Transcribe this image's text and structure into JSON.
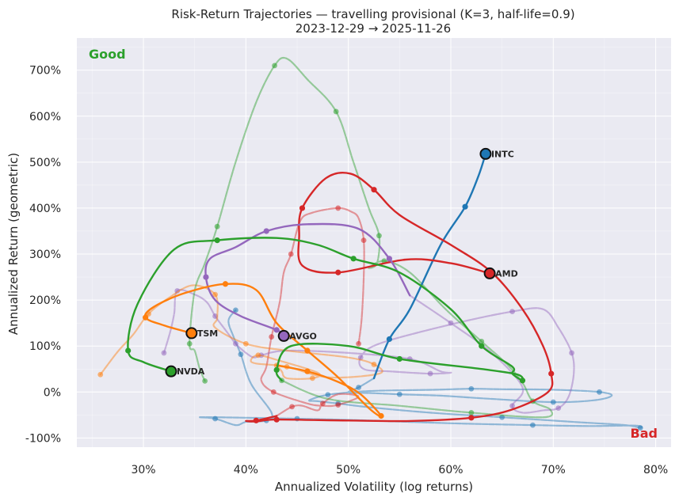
{
  "chart_data": {
    "type": "line",
    "title": "Risk-Return Trajectories — travelling provisional (K=3, half-life=0.9)",
    "subtitle": "2023-12-29 → 2025-11-26",
    "xlabel": "Annualized Volatility (log returns)",
    "ylabel": "Annualized Return (geometric)",
    "xlim": [
      0.235,
      0.815
    ],
    "ylim": [
      -1.2,
      7.7
    ],
    "xticks": [
      0.3,
      0.4,
      0.5,
      0.6,
      0.7,
      0.8
    ],
    "xtick_labels": [
      "30%",
      "40%",
      "50%",
      "60%",
      "70%",
      "80%"
    ],
    "yticks": [
      -1,
      0,
      1,
      2,
      3,
      4,
      5,
      6,
      7
    ],
    "ytick_labels": [
      "-100%",
      "0%",
      "100%",
      "200%",
      "300%",
      "400%",
      "500%",
      "600%",
      "700%"
    ],
    "grid": true,
    "corner_labels": {
      "good": "Good",
      "bad": "Bad"
    },
    "colors": {
      "good": "#2ca02c",
      "bad": "#d62728",
      "plot_bg": "#eaeaf2",
      "grid": "#ffffff"
    },
    "series": [
      {
        "name": "INTC",
        "color": "#1f77b4",
        "history": [
          [
            0.39,
            1.78
          ],
          [
            0.383,
            1.55
          ],
          [
            0.388,
            1.2
          ],
          [
            0.395,
            0.82
          ],
          [
            0.405,
            0.18
          ],
          [
            0.425,
            -0.45
          ],
          [
            0.42,
            -0.62
          ],
          [
            0.4,
            -0.65
          ],
          [
            0.39,
            -0.72
          ],
          [
            0.37,
            -0.58
          ],
          [
            0.355,
            -0.55
          ],
          [
            0.37,
            -0.55
          ],
          [
            0.45,
            -0.58
          ],
          [
            0.52,
            -0.62
          ],
          [
            0.6,
            -0.68
          ],
          [
            0.68,
            -0.72
          ],
          [
            0.735,
            -0.74
          ],
          [
            0.78,
            -0.73
          ],
          [
            0.785,
            -0.78
          ],
          [
            0.77,
            -0.72
          ],
          [
            0.72,
            -0.65
          ],
          [
            0.65,
            -0.55
          ],
          [
            0.58,
            -0.45
          ],
          [
            0.52,
            -0.33
          ],
          [
            0.49,
            -0.25
          ],
          [
            0.47,
            -0.2
          ],
          [
            0.462,
            -0.18
          ],
          [
            0.48,
            -0.06
          ],
          [
            0.52,
            0.02
          ],
          [
            0.585,
            0.05
          ],
          [
            0.62,
            0.07
          ],
          [
            0.65,
            0.06
          ],
          [
            0.7,
            0.05
          ],
          [
            0.745,
            0.0
          ],
          [
            0.757,
            -0.08
          ],
          [
            0.74,
            -0.18
          ],
          [
            0.7,
            -0.22
          ],
          [
            0.64,
            -0.15
          ],
          [
            0.59,
            -0.08
          ],
          [
            0.55,
            -0.05
          ],
          [
            0.52,
            -0.02
          ],
          [
            0.5,
            -0.01
          ],
          [
            0.51,
            0.1
          ],
          [
            0.525,
            0.3
          ]
        ],
        "recent": [
          [
            0.525,
            0.3
          ],
          [
            0.54,
            1.15
          ],
          [
            0.56,
            1.8
          ],
          [
            0.59,
            3.2
          ],
          [
            0.614,
            4.03
          ],
          [
            0.627,
            4.7
          ],
          [
            0.634,
            5.18
          ]
        ],
        "end": [
          0.634,
          5.18
        ]
      },
      {
        "name": "AMD",
        "color": "#d62728",
        "history": [
          [
            0.51,
            1.05
          ],
          [
            0.513,
            1.6
          ],
          [
            0.515,
            2.5
          ],
          [
            0.515,
            3.3
          ],
          [
            0.51,
            3.78
          ],
          [
            0.503,
            3.92
          ],
          [
            0.49,
            4.0
          ],
          [
            0.465,
            3.9
          ],
          [
            0.453,
            3.72
          ],
          [
            0.444,
            3.0
          ],
          [
            0.437,
            2.6
          ],
          [
            0.433,
            1.95
          ],
          [
            0.425,
            1.2
          ],
          [
            0.42,
            0.55
          ],
          [
            0.415,
            0.25
          ],
          [
            0.427,
            0.0
          ],
          [
            0.46,
            -0.25
          ],
          [
            0.475,
            -0.3
          ],
          [
            0.49,
            -0.28
          ],
          [
            0.51,
            -0.1
          ],
          [
            0.49,
            -0.05
          ],
          [
            0.475,
            -0.25
          ],
          [
            0.47,
            -0.4
          ],
          [
            0.455,
            -0.3
          ],
          [
            0.445,
            -0.32
          ],
          [
            0.43,
            -0.52
          ]
        ],
        "recent": [
          [
            0.43,
            -0.52
          ],
          [
            0.41,
            -0.62
          ],
          [
            0.4,
            -0.63
          ],
          [
            0.41,
            -0.64
          ],
          [
            0.43,
            -0.6
          ],
          [
            0.5,
            -0.62
          ],
          [
            0.56,
            -0.63
          ],
          [
            0.62,
            -0.56
          ],
          [
            0.66,
            -0.38
          ],
          [
            0.695,
            0.0
          ],
          [
            0.698,
            0.4
          ],
          [
            0.69,
            1.0
          ],
          [
            0.67,
            1.8
          ],
          [
            0.64,
            2.6
          ],
          [
            0.6,
            3.2
          ],
          [
            0.55,
            3.85
          ],
          [
            0.525,
            4.4
          ],
          [
            0.502,
            4.75
          ],
          [
            0.478,
            4.65
          ],
          [
            0.455,
            4.0
          ],
          [
            0.452,
            3.4
          ],
          [
            0.455,
            2.75
          ],
          [
            0.49,
            2.6
          ],
          [
            0.556,
            2.88
          ],
          [
            0.6,
            2.8
          ],
          [
            0.638,
            2.58
          ]
        ],
        "end": [
          0.638,
          2.58
        ]
      },
      {
        "name": "AVGO",
        "color": "#9467bd",
        "history": [
          [
            0.32,
            0.85
          ],
          [
            0.326,
            1.3
          ],
          [
            0.33,
            1.7
          ],
          [
            0.333,
            2.2
          ],
          [
            0.35,
            2.12
          ],
          [
            0.362,
            1.95
          ],
          [
            0.37,
            1.65
          ],
          [
            0.38,
            1.35
          ],
          [
            0.385,
            1.2
          ],
          [
            0.39,
            1.05
          ],
          [
            0.4,
            0.85
          ],
          [
            0.408,
            0.75
          ],
          [
            0.415,
            0.8
          ],
          [
            0.44,
            0.9
          ],
          [
            0.5,
            0.85
          ],
          [
            0.56,
            0.72
          ],
          [
            0.59,
            0.45
          ],
          [
            0.6,
            0.42
          ],
          [
            0.58,
            0.4
          ],
          [
            0.54,
            0.45
          ],
          [
            0.515,
            0.5
          ],
          [
            0.512,
            0.75
          ],
          [
            0.53,
            1.05
          ],
          [
            0.6,
            1.47
          ],
          [
            0.66,
            1.75
          ],
          [
            0.69,
            1.8
          ],
          [
            0.705,
            1.4
          ],
          [
            0.718,
            0.85
          ],
          [
            0.72,
            0.4
          ],
          [
            0.715,
            -0.1
          ],
          [
            0.705,
            -0.35
          ],
          [
            0.69,
            -0.4
          ],
          [
            0.67,
            -0.45
          ],
          [
            0.66,
            -0.3
          ],
          [
            0.67,
            0.1
          ],
          [
            0.64,
            0.85
          ],
          [
            0.6,
            1.5
          ],
          [
            0.56,
            2.1
          ]
        ],
        "recent": [
          [
            0.56,
            2.1
          ],
          [
            0.54,
            2.9
          ],
          [
            0.51,
            3.55
          ],
          [
            0.46,
            3.65
          ],
          [
            0.42,
            3.5
          ],
          [
            0.39,
            3.15
          ],
          [
            0.365,
            2.9
          ],
          [
            0.361,
            2.5
          ],
          [
            0.37,
            2.0
          ],
          [
            0.395,
            1.65
          ],
          [
            0.43,
            1.35
          ],
          [
            0.437,
            1.22
          ]
        ],
        "end": [
          0.437,
          1.22
        ]
      },
      {
        "name": "TSM",
        "color": "#ff7f0e",
        "history": [
          [
            0.258,
            0.38
          ],
          [
            0.275,
            0.88
          ],
          [
            0.29,
            1.25
          ],
          [
            0.305,
            1.7
          ],
          [
            0.325,
            2.05
          ],
          [
            0.348,
            2.32
          ],
          [
            0.37,
            2.12
          ],
          [
            0.372,
            1.62
          ],
          [
            0.37,
            1.4
          ],
          [
            0.4,
            1.05
          ],
          [
            0.44,
            0.9
          ],
          [
            0.5,
            0.75
          ],
          [
            0.525,
            0.6
          ],
          [
            0.53,
            0.4
          ],
          [
            0.48,
            0.32
          ],
          [
            0.44,
            0.55
          ],
          [
            0.41,
            0.62
          ],
          [
            0.405,
            0.7
          ],
          [
            0.412,
            0.8
          ],
          [
            0.43,
            0.7
          ],
          [
            0.47,
            0.42
          ],
          [
            0.465,
            0.3
          ],
          [
            0.44,
            0.3
          ],
          [
            0.435,
            0.45
          ],
          [
            0.43,
            0.58
          ]
        ],
        "recent": [
          [
            0.43,
            0.58
          ],
          [
            0.46,
            0.45
          ],
          [
            0.49,
            0.22
          ],
          [
            0.512,
            -0.05
          ],
          [
            0.532,
            -0.52
          ],
          [
            0.52,
            -0.35
          ],
          [
            0.49,
            0.32
          ],
          [
            0.46,
            0.9
          ],
          [
            0.43,
            1.5
          ],
          [
            0.41,
            2.22
          ],
          [
            0.38,
            2.35
          ],
          [
            0.34,
            2.15
          ],
          [
            0.31,
            1.85
          ],
          [
            0.302,
            1.62
          ],
          [
            0.32,
            1.45
          ],
          [
            0.347,
            1.28
          ]
        ],
        "end": [
          0.347,
          1.28
        ]
      },
      {
        "name": "NVDA",
        "color": "#2ca02c",
        "history": [
          [
            0.36,
            0.24
          ],
          [
            0.355,
            0.5
          ],
          [
            0.35,
            0.9
          ],
          [
            0.345,
            1.05
          ],
          [
            0.35,
            2.2
          ],
          [
            0.36,
            2.8
          ],
          [
            0.372,
            3.6
          ],
          [
            0.39,
            5.0
          ],
          [
            0.41,
            6.3
          ],
          [
            0.428,
            7.1
          ],
          [
            0.44,
            7.25
          ],
          [
            0.46,
            6.8
          ],
          [
            0.488,
            6.1
          ],
          [
            0.505,
            5.0
          ],
          [
            0.52,
            4.0
          ],
          [
            0.53,
            3.4
          ],
          [
            0.528,
            2.8
          ],
          [
            0.52,
            2.7
          ],
          [
            0.535,
            2.85
          ],
          [
            0.56,
            2.6
          ],
          [
            0.595,
            1.8
          ],
          [
            0.63,
            1.1
          ],
          [
            0.655,
            0.6
          ],
          [
            0.67,
            0.2
          ],
          [
            0.68,
            -0.2
          ],
          [
            0.697,
            -0.38
          ],
          [
            0.69,
            -0.55
          ],
          [
            0.62,
            -0.45
          ],
          [
            0.55,
            -0.3
          ],
          [
            0.48,
            -0.15
          ],
          [
            0.435,
            0.25
          ]
        ],
        "recent": [
          [
            0.435,
            0.25
          ],
          [
            0.43,
            0.48
          ],
          [
            0.444,
            1.0
          ],
          [
            0.5,
            1.0
          ],
          [
            0.55,
            0.72
          ],
          [
            0.63,
            0.5
          ],
          [
            0.665,
            0.38
          ],
          [
            0.67,
            0.25
          ],
          [
            0.66,
            0.4
          ],
          [
            0.66,
            0.55
          ],
          [
            0.63,
            1.0
          ],
          [
            0.6,
            1.8
          ],
          [
            0.55,
            2.6
          ],
          [
            0.505,
            2.9
          ],
          [
            0.47,
            3.2
          ],
          [
            0.43,
            3.35
          ],
          [
            0.372,
            3.3
          ],
          [
            0.33,
            3.1
          ],
          [
            0.294,
            1.9
          ],
          [
            0.285,
            0.9
          ],
          [
            0.3,
            0.65
          ],
          [
            0.327,
            0.45
          ]
        ],
        "end": [
          0.327,
          0.45
        ]
      }
    ]
  }
}
